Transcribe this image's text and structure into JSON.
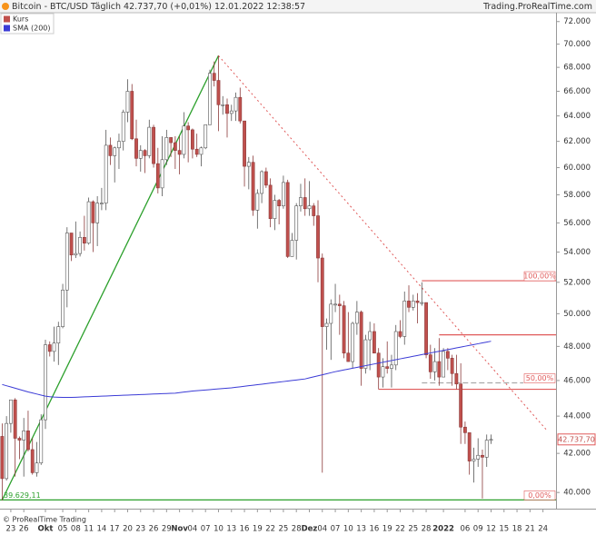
{
  "chart_data": {
    "type": "candlestick",
    "title": "Bitcoin - BTC/USD Täglich 42.737,70 (+0,01%) 12.01.2022 12:38:57",
    "source": "Trading.ProRealTime.com",
    "copyright": "© ProRealTime Trading",
    "log_scale": true,
    "grid": false,
    "legend": "top-left",
    "up_color": "#ffffff",
    "ylim": [
      39200,
      72800
    ],
    "yticks": [
      {
        "value": 40000,
        "label": "40.000"
      },
      {
        "value": 42000,
        "label": "42.000"
      },
      {
        "value": 44000,
        "label": "44.000"
      },
      {
        "value": 46000,
        "label": "46.000"
      },
      {
        "value": 48000,
        "label": "48.000"
      },
      {
        "value": 50000,
        "label": "50.000"
      },
      {
        "value": 52000,
        "label": "52.000"
      },
      {
        "value": 54000,
        "label": "54.000"
      },
      {
        "value": 56000,
        "label": "56.000"
      },
      {
        "value": 58000,
        "label": "58.000"
      },
      {
        "value": 60000,
        "label": "60.000"
      },
      {
        "value": 62000,
        "label": "62.000"
      },
      {
        "value": 64000,
        "label": "64.000"
      },
      {
        "value": 66000,
        "label": "66.000"
      },
      {
        "value": 68000,
        "label": "68.000"
      },
      {
        "value": 70000,
        "label": "70.000"
      },
      {
        "value": 72000,
        "label": "72.000"
      }
    ],
    "categories": [
      null,
      null,
      "23",
      null,
      null,
      "26",
      null,
      null,
      null,
      null,
      "Okt",
      null,
      null,
      null,
      "05",
      null,
      null,
      "08",
      null,
      null,
      "11",
      null,
      null,
      "14",
      null,
      null,
      "17",
      null,
      null,
      "20",
      null,
      null,
      "23",
      null,
      null,
      "26",
      null,
      null,
      "29",
      null,
      null,
      "Nov",
      null,
      null,
      "04",
      null,
      null,
      "07",
      null,
      null,
      "10",
      null,
      null,
      "13",
      null,
      null,
      "16",
      null,
      null,
      "19",
      null,
      null,
      "22",
      null,
      null,
      "25",
      null,
      null,
      "28",
      null,
      null,
      "Dez",
      null,
      null,
      "04",
      null,
      null,
      "07",
      null,
      null,
      "10",
      null,
      null,
      "13",
      null,
      null,
      "16",
      null,
      null,
      "19",
      null,
      null,
      "22",
      null,
      null,
      "25",
      null,
      null,
      "28",
      null,
      null,
      null,
      "2022",
      null,
      null,
      null,
      null,
      "06",
      null,
      null,
      "09",
      null,
      null,
      "12",
      null,
      null,
      "15",
      null,
      null,
      "18",
      null,
      null,
      "21",
      null,
      null,
      "24",
      null
    ],
    "series": [
      {
        "name": "Kurs",
        "color": "#c0504d",
        "open": [
          42900,
          40700,
          43600,
          44900,
          42800,
          42700,
          43200,
          42200,
          41000,
          41500,
          43800,
          48100,
          47700,
          48200,
          49200,
          51500,
          55300,
          53800,
          53900,
          55000,
          54600,
          57500,
          56000,
          57400,
          57400,
          61700,
          60900,
          61500,
          62000,
          64300,
          66000,
          62200,
          60700,
          61300,
          60900,
          63100,
          60300,
          58500,
          60600,
          62300,
          61900,
          61300,
          61000,
          63200,
          62900,
          61400,
          61000,
          61500,
          63300,
          67500,
          66900,
          64900,
          64900,
          64200,
          64400,
          65500,
          63600,
          60100,
          60400,
          56900,
          58100,
          59700,
          58700,
          56300,
          57600,
          57200,
          58900,
          53700,
          54800,
          57200,
          57800,
          57000,
          57200,
          56500,
          53600,
          49200,
          49400,
          50600,
          50600,
          50500,
          47600,
          47100,
          49400,
          50100,
          46700,
          48400,
          48900,
          47600,
          46200,
          46800,
          46700,
          46900,
          48900,
          48600,
          50800,
          50400,
          50800,
          50700,
          50700,
          47500,
          46500,
          47100,
          46200,
          47700,
          47300,
          46400,
          45800,
          43400,
          43100,
          41600,
          41700,
          41900,
          41800,
          42700,
          null,
          null,
          null,
          null,
          null,
          null,
          null,
          null,
          null,
          null,
          null,
          null,
          null
        ],
        "high": [
          43600,
          44000,
          44900,
          45000,
          42900,
          43900,
          44300,
          42800,
          42600,
          44100,
          48400,
          48300,
          49200,
          49500,
          51900,
          55700,
          55300,
          56100,
          55400,
          56500,
          57800,
          57600,
          57900,
          58500,
          62900,
          62300,
          61600,
          62600,
          64500,
          67000,
          66600,
          63700,
          61700,
          61400,
          63700,
          63300,
          61500,
          62400,
          62900,
          62300,
          62400,
          62400,
          64300,
          63500,
          63000,
          62600,
          61600,
          63300,
          67800,
          68500,
          69000,
          65600,
          65400,
          64900,
          65900,
          66300,
          63600,
          60800,
          60900,
          58400,
          59800,
          60000,
          59200,
          58000,
          57700,
          59400,
          59100,
          55300,
          57400,
          58800,
          59200,
          59000,
          57400,
          57600,
          53900,
          49700,
          50900,
          51900,
          51200,
          50800,
          50100,
          49500,
          50800,
          50200,
          48700,
          49500,
          49400,
          47900,
          47300,
          48300,
          47500,
          49300,
          49600,
          51400,
          51800,
          51200,
          51300,
          52000,
          50700,
          48100,
          47900,
          48500,
          47900,
          47900,
          47500,
          47500,
          47000,
          43700,
          43100,
          42300,
          42800,
          42200,
          43000,
          43000,
          null,
          null,
          null,
          null,
          null,
          null,
          null,
          null,
          null,
          null,
          null,
          null,
          null
        ],
        "low": [
          39600,
          40600,
          43100,
          40800,
          41700,
          40800,
          42100,
          40900,
          40800,
          41400,
          43300,
          47400,
          47100,
          46900,
          49100,
          50400,
          53400,
          53600,
          53700,
          54100,
          54500,
          54000,
          54400,
          56900,
          56900,
          60200,
          58900,
          59900,
          61300,
          63500,
          62100,
          60100,
          59700,
          59600,
          60700,
          60000,
          58100,
          57900,
          60200,
          60800,
          59900,
          59500,
          60700,
          60400,
          60700,
          60800,
          60100,
          61400,
          63300,
          66400,
          62800,
          64100,
          62300,
          63600,
          63600,
          63400,
          58600,
          58400,
          56500,
          55600,
          57400,
          58500,
          55700,
          55500,
          55900,
          57000,
          53600,
          53700,
          53500,
          56800,
          56500,
          56500,
          55800,
          52000,
          41000,
          47800,
          47200,
          50100,
          48700,
          47300,
          47100,
          46700,
          48700,
          45700,
          46400,
          46600,
          47600,
          45500,
          45600,
          46400,
          45600,
          46600,
          48500,
          48100,
          50100,
          50200,
          49400,
          50500,
          47300,
          46100,
          46000,
          45700,
          46200,
          46600,
          45700,
          45500,
          42500,
          42500,
          40900,
          40500,
          41300,
          39700,
          41300,
          42500,
          null,
          null,
          null,
          null,
          null,
          null,
          null,
          null,
          null,
          null,
          null,
          null,
          null
        ],
        "close": [
          40700,
          43600,
          44900,
          42800,
          42700,
          43200,
          42200,
          41000,
          41500,
          43800,
          48100,
          47700,
          48200,
          49200,
          51500,
          55300,
          53800,
          53900,
          55000,
          54600,
          57500,
          56000,
          57400,
          57400,
          61700,
          60900,
          61500,
          62000,
          64300,
          66000,
          62200,
          60700,
          61300,
          60900,
          63100,
          60300,
          58500,
          60600,
          62300,
          61900,
          61300,
          61000,
          63200,
          62900,
          61400,
          61000,
          61500,
          63300,
          67500,
          66900,
          64900,
          64900,
          64200,
          64400,
          65500,
          63600,
          60100,
          60400,
          56900,
          58100,
          59700,
          58700,
          56300,
          57600,
          57200,
          58900,
          53700,
          54800,
          57200,
          57800,
          57000,
          57200,
          56500,
          53600,
          49200,
          49400,
          50600,
          50600,
          50500,
          47600,
          47100,
          49400,
          50100,
          46700,
          48400,
          48900,
          47600,
          46200,
          46800,
          46700,
          46900,
          48900,
          48600,
          50800,
          50400,
          50800,
          50700,
          50700,
          47500,
          46500,
          47100,
          46200,
          47700,
          47300,
          46400,
          45800,
          43400,
          43100,
          41600,
          41700,
          41900,
          41800,
          42700,
          42737.7,
          null,
          null,
          null,
          null,
          null,
          null,
          null,
          null,
          null,
          null,
          null,
          null,
          null
        ]
      },
      {
        "name": "SMA (200)",
        "color": "#3b3bd6",
        "values": [
          45770,
          45700,
          45630,
          45560,
          45490,
          45420,
          45350,
          45290,
          45230,
          45170,
          45110,
          45080,
          45060,
          45050,
          45040,
          45040,
          45040,
          45050,
          45060,
          45070,
          45080,
          45090,
          45100,
          45110,
          45120,
          45130,
          45140,
          45150,
          45160,
          45170,
          45180,
          45190,
          45200,
          45210,
          45220,
          45230,
          45240,
          45250,
          45260,
          45270,
          45280,
          45310,
          45340,
          45370,
          45400,
          45420,
          45440,
          45460,
          45480,
          45500,
          45520,
          45540,
          45560,
          45580,
          45610,
          45640,
          45670,
          45700,
          45730,
          45760,
          45790,
          45820,
          45850,
          45880,
          45910,
          45940,
          45970,
          46000,
          46030,
          46060,
          46090,
          46150,
          46210,
          46270,
          46330,
          46390,
          46450,
          46510,
          46560,
          46610,
          46660,
          46710,
          46760,
          46810,
          46860,
          46910,
          46960,
          47010,
          47060,
          47110,
          47160,
          47210,
          47260,
          47310,
          47360,
          47410,
          47460,
          47510,
          47560,
          47610,
          47660,
          47710,
          47760,
          47810,
          47860,
          47910,
          47960,
          48010,
          48060,
          48110,
          48160,
          48210,
          48260,
          48310,
          null,
          null,
          null,
          null,
          null,
          null,
          null,
          null,
          null,
          null,
          null,
          null,
          null
        ]
      }
    ],
    "last": {
      "value": 42737.7,
      "label": "42.737,70"
    },
    "drawings": {
      "trendlines": [
        {
          "color": "#2ca02c",
          "from": [
            0,
            39629.11
          ],
          "to": [
            50,
            69000
          ]
        },
        {
          "color": "#e05a5a",
          "dash": true,
          "from": [
            50,
            69000
          ],
          "to": [
            126,
            43200
          ]
        }
      ],
      "levels": [
        {
          "value": 48700,
          "from": 101,
          "color": "#e05a5a"
        },
        {
          "value": 45500,
          "from": 87,
          "color": "#e05a5a"
        }
      ],
      "fibonacci": {
        "from": 97,
        "high": 52100,
        "low": {
          "value": 39629.11,
          "label": "39.629,11"
        },
        "ratios": [
          {
            "value": 100,
            "label": "100,00%"
          },
          {
            "value": 50,
            "label": "50,00%"
          },
          {
            "value": 0,
            "label": "0,00%"
          }
        ]
      }
    }
  }
}
